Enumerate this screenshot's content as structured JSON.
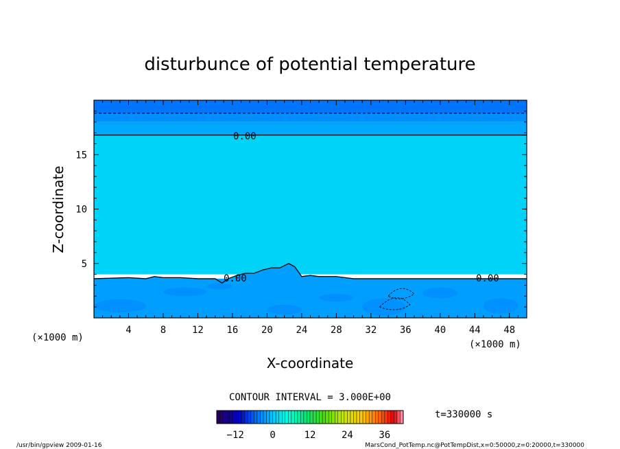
{
  "chart_data": {
    "type": "heatmap",
    "title": "disturbunce of potential temperature",
    "xlabel": "X-coordinate",
    "ylabel": "Z-coordinate",
    "xunit": "(×1000 m)",
    "yunit": "(×1000 m)",
    "xlim": [
      0,
      50
    ],
    "ylim": [
      0,
      20
    ],
    "x_ticks": [
      "4",
      "8",
      "12",
      "16",
      "20",
      "24",
      "28",
      "32",
      "36",
      "40",
      "44",
      "48"
    ],
    "y_ticks": [
      "5",
      "10",
      "15"
    ],
    "contour_interval_label": "CONTOUR INTERVAL = 3.000E+00",
    "time_label": "t=330000 s",
    "contour_labels": [
      "0.00",
      "0.00",
      "0.00"
    ],
    "colorbar": {
      "min": -18,
      "max": 42,
      "ticks": [
        "−12",
        "0",
        "12",
        "24",
        "36"
      ],
      "tick_values": [
        -12,
        0,
        12,
        24,
        36
      ]
    },
    "bands": [
      {
        "z_from": 18.8,
        "z_to": 20,
        "value": -5
      },
      {
        "z_from": 18.0,
        "z_to": 18.8,
        "value": -3.5
      },
      {
        "z_from": 16.8,
        "z_to": 18.0,
        "value": -2
      },
      {
        "z_from": 4.0,
        "z_to": 16.8,
        "value": 1
      },
      {
        "z_from": 0,
        "z_to": 3.6,
        "value": -2.5
      }
    ],
    "zero_contour_upper_z": 16.8,
    "zero_contour_lower": {
      "x": [
        0,
        4,
        6,
        7,
        8,
        10,
        12,
        14,
        14.8,
        15.5,
        16.5,
        17.5,
        18.5,
        19.5,
        20.5,
        21.5,
        22.5,
        23.2,
        24,
        25,
        26,
        28,
        30,
        32,
        34,
        36,
        40,
        44,
        48,
        50
      ],
      "z": [
        3.6,
        3.7,
        3.6,
        3.8,
        3.7,
        3.7,
        3.6,
        3.6,
        3.2,
        3.6,
        3.9,
        4.1,
        4.1,
        4.4,
        4.6,
        4.6,
        5.0,
        4.7,
        3.8,
        3.9,
        3.8,
        3.8,
        3.6,
        3.6,
        3.6,
        3.6,
        3.6,
        3.6,
        3.6,
        3.6
      ]
    }
  },
  "footer": {
    "left": "/usr/bin/gpview   2009-01-16",
    "right": "MarsCond_PotTemp.nc@PotTempDist,x=0:50000,z=0:20000,t=330000"
  }
}
